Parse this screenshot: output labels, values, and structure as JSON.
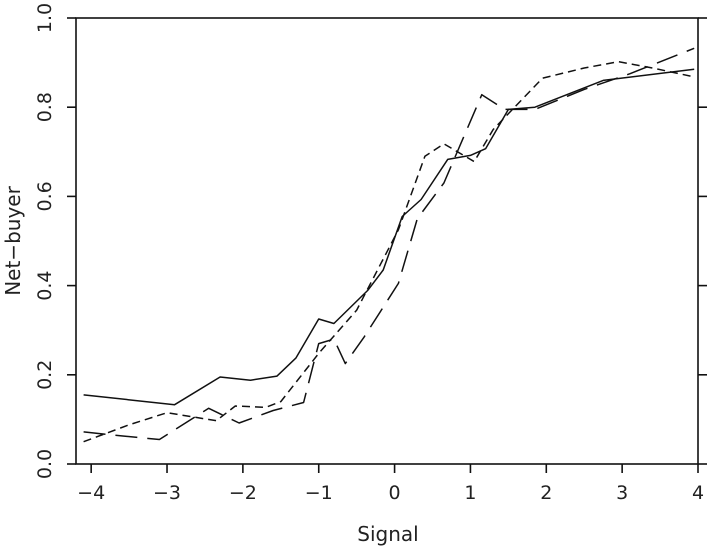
{
  "chart_data": {
    "type": "line",
    "title": "",
    "xlabel": "Signal",
    "ylabel": "Net−buyer",
    "xlim": [
      -4.2,
      4.0
    ],
    "ylim": [
      0.0,
      1.0
    ],
    "grid": false,
    "legend": "none",
    "x_ticks": [
      {
        "value": -4,
        "label": "−4"
      },
      {
        "value": -3,
        "label": "−3"
      },
      {
        "value": -2,
        "label": "−2"
      },
      {
        "value": -1,
        "label": "−1"
      },
      {
        "value": 0,
        "label": "0"
      },
      {
        "value": 1,
        "label": "1"
      },
      {
        "value": 2,
        "label": "2"
      },
      {
        "value": 3,
        "label": "3"
      },
      {
        "value": 4,
        "label": "4"
      }
    ],
    "y_ticks": [
      {
        "value": 0.0,
        "label": "0.0"
      },
      {
        "value": 0.2,
        "label": "0.2"
      },
      {
        "value": 0.4,
        "label": "0.4"
      },
      {
        "value": 0.6,
        "label": "0.6"
      },
      {
        "value": 0.8,
        "label": "0.8"
      },
      {
        "value": 1.0,
        "label": "1.0"
      }
    ],
    "series": [
      {
        "line_style": "solid",
        "color": "#111111",
        "points": [
          [
            -4.1,
            0.155
          ],
          [
            -2.9,
            0.133
          ],
          [
            -2.3,
            0.195
          ],
          [
            -1.9,
            0.188
          ],
          [
            -1.55,
            0.197
          ],
          [
            -1.3,
            0.238
          ],
          [
            -1.0,
            0.325
          ],
          [
            -0.8,
            0.315
          ],
          [
            -0.35,
            0.39
          ],
          [
            -0.15,
            0.435
          ],
          [
            0.1,
            0.555
          ],
          [
            0.35,
            0.593
          ],
          [
            0.7,
            0.683
          ],
          [
            1.0,
            0.692
          ],
          [
            1.2,
            0.707
          ],
          [
            1.5,
            0.795
          ],
          [
            1.85,
            0.8
          ],
          [
            2.3,
            0.83
          ],
          [
            2.75,
            0.86
          ],
          [
            3.95,
            0.885
          ]
        ]
      },
      {
        "line_style": "short-dash",
        "color": "#111111",
        "points": [
          [
            -4.1,
            0.05
          ],
          [
            -3.5,
            0.088
          ],
          [
            -3.0,
            0.115
          ],
          [
            -2.35,
            0.097
          ],
          [
            -2.1,
            0.13
          ],
          [
            -1.7,
            0.127
          ],
          [
            -1.5,
            0.14
          ],
          [
            -1.0,
            0.248
          ],
          [
            -0.5,
            0.345
          ],
          [
            0.05,
            0.525
          ],
          [
            0.4,
            0.69
          ],
          [
            0.65,
            0.718
          ],
          [
            1.05,
            0.678
          ],
          [
            1.3,
            0.75
          ],
          [
            1.95,
            0.865
          ],
          [
            2.5,
            0.888
          ],
          [
            2.95,
            0.902
          ],
          [
            3.4,
            0.888
          ],
          [
            3.95,
            0.868
          ]
        ]
      },
      {
        "line_style": "long-dash",
        "color": "#111111",
        "points": [
          [
            -4.1,
            0.072
          ],
          [
            -3.6,
            0.063
          ],
          [
            -3.1,
            0.055
          ],
          [
            -2.45,
            0.125
          ],
          [
            -2.05,
            0.092
          ],
          [
            -1.6,
            0.12
          ],
          [
            -1.2,
            0.138
          ],
          [
            -1.0,
            0.27
          ],
          [
            -0.8,
            0.28
          ],
          [
            -0.65,
            0.225
          ],
          [
            -0.4,
            0.285
          ],
          [
            0.05,
            0.405
          ],
          [
            0.3,
            0.55
          ],
          [
            0.65,
            0.63
          ],
          [
            1.15,
            0.828
          ],
          [
            1.45,
            0.795
          ],
          [
            1.85,
            0.795
          ],
          [
            2.5,
            0.84
          ],
          [
            3.1,
            0.875
          ],
          [
            3.95,
            0.932
          ]
        ]
      }
    ]
  }
}
